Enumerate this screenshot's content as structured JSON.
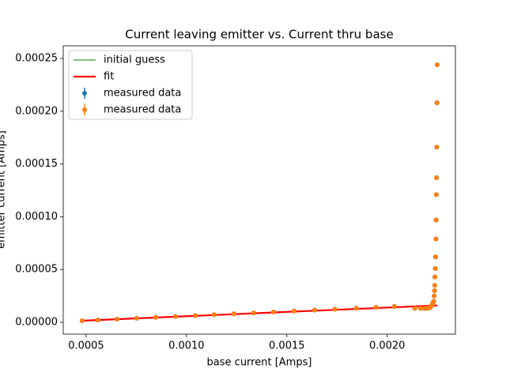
{
  "chart_data": {
    "type": "line",
    "title": "Current leaving emitter vs. Current thru base",
    "x_label": "base current [Amps]",
    "y_label": "emitter current [Amps]",
    "xlim": [
      0.000386,
      0.00234
    ],
    "ylim": [
      -1.12e-05,
      0.000262
    ],
    "xticks": [
      0.0005,
      {
        "value": 0.001,
        "label": "0.0010"
      },
      {
        "value": 0.0015,
        "label": "0.0015"
      },
      {
        "value": 0.002,
        "label": "0.0020"
      }
    ],
    "yticks": [
      {
        "value": 0,
        "label": "0.00000"
      },
      5e-05,
      {
        "value": 0.0001,
        "label": "0.00010"
      },
      {
        "value": 0.00015,
        "label": "0.00015"
      },
      {
        "value": 0.0002,
        "label": "0.00020"
      },
      {
        "value": 0.00025,
        "label": "0.00025"
      }
    ],
    "legend": "upper left",
    "series": [
      {
        "name": "initial guess",
        "color": "#008000",
        "style": "line",
        "x": [
          0.00048,
          0.002249
        ],
        "values": [
          1.5e-06,
          1.6e-05
        ]
      },
      {
        "name": " fit",
        "color": "#ff0000",
        "style": "line",
        "x": [
          0.00048,
          0.002249
        ],
        "values": [
          1.5e-06,
          1.6e-05
        ]
      },
      {
        "name": "measured data",
        "color": "#1f77b4",
        "style": "points",
        "x": [
          0.00048,
          0.000559,
          0.000654,
          0.000752,
          0.000847,
          0.000945,
          0.001044,
          0.001138,
          0.001236,
          0.001335,
          0.001433,
          0.001536,
          0.001638,
          0.00174,
          0.001847,
          0.001945,
          0.002036,
          0.002138,
          0.002166,
          0.002185,
          0.002197,
          0.002205,
          0.002213,
          0.002217,
          0.002221,
          0.002225,
          0.002228,
          0.002232,
          0.002234,
          0.002236,
          0.002237,
          0.002238,
          0.00224,
          0.002241,
          0.002243,
          0.002244,
          0.002245,
          0.002246,
          0.002247,
          0.002248,
          0.002249
        ],
        "values": [
          1.5e-06,
          2.2e-06,
          3e-06,
          3.9e-06,
          4.7e-06,
          5.5e-06,
          6.4e-06,
          7.2e-06,
          8.1e-06,
          8.9e-06,
          9.8e-06,
          1.07e-05,
          1.16e-05,
          1.25e-05,
          1.34e-05,
          1.42e-05,
          1.5e-05,
          1.33e-05,
          1.32e-05,
          1.32e-05,
          1.33e-05,
          1.35e-05,
          1.4e-05,
          1.48e-05,
          1.58e-05,
          1.7e-05,
          1.85e-05,
          2e-05,
          2.5e-05,
          3e-05,
          3.5e-05,
          4.3e-05,
          5.1e-05,
          6.2e-05,
          7.9e-05,
          9.7e-05,
          0.000121,
          0.000137,
          0.000166,
          0.000208,
          0.000244
        ]
      },
      {
        "name": "measured data",
        "color": "#ff7f0e",
        "style": "points",
        "x": [
          0.00048,
          0.000559,
          0.000654,
          0.000752,
          0.000847,
          0.000945,
          0.001044,
          0.001138,
          0.001236,
          0.001335,
          0.001433,
          0.001536,
          0.001638,
          0.00174,
          0.001847,
          0.001945,
          0.002036,
          0.002138,
          0.002166,
          0.002185,
          0.002197,
          0.002205,
          0.002213,
          0.002217,
          0.002221,
          0.002225,
          0.002228,
          0.002232,
          0.002234,
          0.002236,
          0.002237,
          0.002238,
          0.00224,
          0.002241,
          0.002243,
          0.002244,
          0.002245,
          0.002246,
          0.002247,
          0.002248,
          0.002249
        ],
        "values": [
          1.5e-06,
          2.2e-06,
          3e-06,
          3.9e-06,
          4.7e-06,
          5.5e-06,
          6.4e-06,
          7.2e-06,
          8.1e-06,
          8.9e-06,
          9.8e-06,
          1.07e-05,
          1.16e-05,
          1.25e-05,
          1.34e-05,
          1.42e-05,
          1.5e-05,
          1.33e-05,
          1.32e-05,
          1.32e-05,
          1.33e-05,
          1.35e-05,
          1.4e-05,
          1.48e-05,
          1.58e-05,
          1.7e-05,
          1.85e-05,
          2e-05,
          2.5e-05,
          3e-05,
          3.5e-05,
          4.3e-05,
          5.1e-05,
          6.2e-05,
          7.9e-05,
          9.7e-05,
          0.000121,
          0.000137,
          0.000166,
          0.000208,
          0.000244
        ]
      }
    ]
  }
}
